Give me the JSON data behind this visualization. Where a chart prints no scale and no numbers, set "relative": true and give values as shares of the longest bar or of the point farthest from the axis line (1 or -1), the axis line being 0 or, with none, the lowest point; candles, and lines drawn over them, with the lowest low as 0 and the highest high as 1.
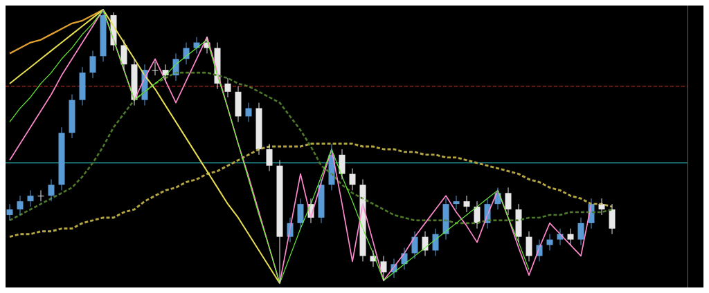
{
  "chart_data": [
    {
      "type": "candlestick",
      "relative": true,
      "categories": [
        null,
        null,
        null,
        null,
        null,
        null,
        null,
        null,
        null,
        null,
        null,
        null,
        null,
        null,
        null,
        null,
        null,
        null,
        null,
        null,
        null,
        null,
        null,
        null,
        null,
        null,
        null,
        null,
        null,
        null,
        null,
        null,
        null,
        null,
        null,
        null,
        null,
        null,
        null,
        null,
        null,
        null,
        null,
        null,
        null,
        null,
        null,
        null,
        null,
        null,
        null,
        null,
        null,
        null,
        null,
        null,
        null,
        null,
        null
      ],
      "ohlc": [
        [
          0.25,
          0.29,
          0.23,
          0.27
        ],
        [
          0.27,
          0.32,
          0.25,
          0.3
        ],
        [
          0.3,
          0.34,
          0.28,
          0.32
        ],
        [
          0.32,
          0.34,
          0.3,
          0.32
        ],
        [
          0.32,
          0.38,
          0.3,
          0.36
        ],
        [
          0.36,
          0.57,
          0.34,
          0.55
        ],
        [
          0.55,
          0.69,
          0.53,
          0.67
        ],
        [
          0.67,
          0.79,
          0.65,
          0.77
        ],
        [
          0.77,
          0.85,
          0.75,
          0.83
        ],
        [
          0.83,
          1,
          0.81,
          0.98
        ],
        [
          0.98,
          0.99,
          0.85,
          0.87
        ],
        [
          0.87,
          0.89,
          0.78,
          0.8
        ],
        [
          0.8,
          0.82,
          0.65,
          0.67
        ],
        [
          0.67,
          0.8,
          0.65,
          0.78
        ],
        [
          0.78,
          0.81,
          0.76,
          0.78
        ],
        [
          0.78,
          0.8,
          0.74,
          0.76
        ],
        [
          0.76,
          0.84,
          0.74,
          0.82
        ],
        [
          0.82,
          0.88,
          0.8,
          0.86
        ],
        [
          0.86,
          0.9,
          0.84,
          0.88
        ],
        [
          0.88,
          0.9,
          0.84,
          0.86
        ],
        [
          0.86,
          0.88,
          0.71,
          0.73
        ],
        [
          0.73,
          0.75,
          0.68,
          0.7
        ],
        [
          0.7,
          0.72,
          0.59,
          0.61
        ],
        [
          0.61,
          0.66,
          0.59,
          0.64
        ],
        [
          0.64,
          0.66,
          0.47,
          0.49
        ],
        [
          0.49,
          0.51,
          0.41,
          0.43
        ],
        [
          0.43,
          0.45,
          0,
          0.17
        ],
        [
          0.17,
          0.24,
          0.15,
          0.22
        ],
        [
          0.22,
          0.31,
          0.2,
          0.29
        ],
        [
          0.29,
          0.31,
          0.22,
          0.24
        ],
        [
          0.24,
          0.38,
          0.22,
          0.36
        ],
        [
          0.36,
          0.51,
          0.34,
          0.47
        ],
        [
          0.47,
          0.49,
          0.38,
          0.4
        ],
        [
          0.4,
          0.42,
          0.34,
          0.36
        ],
        [
          0.36,
          0.38,
          0.08,
          0.1
        ],
        [
          0.1,
          0.12,
          0.06,
          0.08
        ],
        [
          0.08,
          0.1,
          0.01,
          0.04
        ],
        [
          0.04,
          0.09,
          0.02,
          0.07
        ],
        [
          0.07,
          0.13,
          0.05,
          0.11
        ],
        [
          0.11,
          0.19,
          0.09,
          0.17
        ],
        [
          0.17,
          0.19,
          0.1,
          0.12
        ],
        [
          0.12,
          0.2,
          0.1,
          0.18
        ],
        [
          0.18,
          0.31,
          0.16,
          0.29
        ],
        [
          0.29,
          0.32,
          0.27,
          0.3
        ],
        [
          0.3,
          0.32,
          0.26,
          0.28
        ],
        [
          0.28,
          0.3,
          0.2,
          0.22
        ],
        [
          0.22,
          0.31,
          0.2,
          0.29
        ],
        [
          0.29,
          0.35,
          0.27,
          0.33
        ],
        [
          0.33,
          0.35,
          0.25,
          0.27
        ],
        [
          0.27,
          0.29,
          0.15,
          0.17
        ],
        [
          0.17,
          0.19,
          0.08,
          0.1
        ],
        [
          0.1,
          0.16,
          0.08,
          0.14
        ],
        [
          0.14,
          0.18,
          0.12,
          0.16
        ],
        [
          0.16,
          0.2,
          0.14,
          0.18
        ],
        [
          0.18,
          0.2,
          0.14,
          0.16
        ],
        [
          0.16,
          0.24,
          0.14,
          0.22
        ],
        [
          0.22,
          0.31,
          0.2,
          0.29
        ],
        [
          0.29,
          0.31,
          0.25,
          0.27
        ],
        [
          0.27,
          0.29,
          0.18,
          0.2
        ]
      ],
      "colors": [
        "#5b9bd5",
        "#5b9bd5",
        "#5b9bd5",
        "#e8e8e8",
        "#5b9bd5",
        "#5b9bd5",
        "#5b9bd5",
        "#5b9bd5",
        "#5b9bd5",
        "#5b9bd5",
        "#e8e8e8",
        "#e8e8e8",
        "#e8e8e8",
        "#5b9bd5",
        "#e8e8e8",
        "#e8e8e8",
        "#5b9bd5",
        "#5b9bd5",
        "#5b9bd5",
        "#e8e8e8",
        "#e8e8e8",
        "#e8e8e8",
        "#e8e8e8",
        "#5b9bd5",
        "#e8e8e8",
        "#e8e8e8",
        "#e8e8e8",
        "#5b9bd5",
        "#5b9bd5",
        "#e8e8e8",
        "#5b9bd5",
        "#5b9bd5",
        "#e8e8e8",
        "#e8e8e8",
        "#e8e8e8",
        "#e8e8e8",
        "#e8e8e8",
        "#5b9bd5",
        "#5b9bd5",
        "#5b9bd5",
        "#e8e8e8",
        "#5b9bd5",
        "#5b9bd5",
        "#5b9bd5",
        "#e8e8e8",
        "#e8e8e8",
        "#5b9bd5",
        "#5b9bd5",
        "#e8e8e8",
        "#e8e8e8",
        "#e8e8e8",
        "#5b9bd5",
        "#5b9bd5",
        "#5b9bd5",
        "#e8e8e8",
        "#5b9bd5",
        "#5b9bd5",
        "#e8e8e8",
        "#e8e8e8"
      ],
      "ref_lines": [
        {
          "axis": "y",
          "value": 0.44,
          "color": "#33cccc",
          "line_style": "solid"
        },
        {
          "axis": "y",
          "value": 0.72,
          "color": "#cc3333",
          "line_style": "dashed"
        }
      ]
    },
    {
      "type": "line",
      "relative": true,
      "categories": [
        null,
        null,
        null,
        null,
        null,
        null,
        null,
        null,
        null,
        null,
        null,
        null,
        null,
        null,
        null,
        null,
        null,
        null,
        null,
        null,
        null,
        null,
        null,
        null,
        null,
        null,
        null,
        null,
        null,
        null,
        null,
        null,
        null,
        null,
        null,
        null,
        null,
        null,
        null,
        null,
        null,
        null,
        null,
        null,
        null,
        null,
        null,
        null,
        null,
        null,
        null,
        null,
        null,
        null,
        null,
        null,
        null,
        null,
        null
      ],
      "series": [
        {
          "color": "#b5a642",
          "line_style": "dashed",
          "values": [
            0.17,
            0.18,
            0.18,
            0.19,
            0.19,
            0.2,
            0.2,
            0.22,
            0.23,
            0.24,
            0.24,
            0.26,
            0.27,
            0.3,
            0.32,
            0.34,
            0.35,
            0.37,
            0.38,
            0.4,
            0.41,
            0.43,
            0.45,
            0.47,
            0.49,
            0.5,
            0.5,
            0.5,
            0.5,
            0.51,
            0.51,
            0.51,
            0.51,
            0.51,
            0.5,
            0.5,
            0.49,
            0.49,
            0.48,
            0.48,
            0.47,
            0.47,
            0.46,
            0.46,
            0.45,
            0.44,
            0.43,
            0.42,
            0.41,
            0.4,
            0.38,
            0.37,
            0.35,
            0.34,
            0.32,
            0.31,
            0.29,
            0.29,
            0.28
          ]
        },
        {
          "color": "#4f7a2a",
          "line_style": "dashed",
          "values": [
            0.23,
            0.25,
            0.27,
            0.29,
            0.31,
            0.33,
            0.35,
            0.39,
            0.44,
            0.5,
            0.57,
            0.62,
            0.67,
            0.7,
            0.73,
            0.75,
            0.77,
            0.77,
            0.77,
            0.77,
            0.76,
            0.75,
            0.73,
            0.72,
            0.7,
            0.68,
            0.66,
            0.61,
            0.56,
            0.5,
            0.43,
            0.4,
            0.36,
            0.33,
            0.31,
            0.29,
            0.27,
            0.25,
            0.24,
            0.23,
            0.23,
            0.23,
            0.23,
            0.22,
            0.22,
            0.22,
            0.23,
            0.23,
            0.23,
            0.23,
            0.24,
            0.24,
            0.25,
            0.25,
            0.26,
            0.26,
            0.26,
            0.26,
            0.27
          ]
        },
        {
          "color": "#e0a030",
          "line_style": "solid",
          "values": [
            0.84,
            0.86,
            0.88,
            0.89,
            0.91,
            0.93,
            0.95,
            0.96,
            0.98,
            1,
            null,
            null,
            null,
            null,
            null,
            null,
            null,
            null,
            null,
            null,
            null,
            null,
            null,
            null,
            null,
            null,
            null,
            null,
            null,
            null,
            null,
            null,
            null,
            null,
            null,
            null,
            null,
            null,
            null,
            null,
            null,
            null,
            null,
            null,
            null,
            null,
            null,
            null,
            null,
            null,
            null,
            null,
            null,
            null,
            null,
            null,
            null,
            null,
            null
          ]
        },
        {
          "color": "#e8e050",
          "line_style": "solid",
          "values": [
            0.73,
            0.76,
            0.79,
            0.82,
            0.85,
            0.88,
            0.91,
            0.94,
            0.97,
            1,
            0.94,
            0.88,
            0.82,
            0.76,
            0.71,
            0.65,
            0.59,
            0.53,
            0.47,
            0.41,
            0.35,
            0.29,
            0.24,
            0.18,
            0.12,
            0.06,
            0,
            null,
            null,
            null,
            null,
            null,
            null,
            null,
            null,
            null,
            null,
            null,
            null,
            null,
            null,
            null,
            null,
            null,
            null,
            null,
            null,
            null,
            null,
            null,
            null,
            null,
            null,
            null,
            null,
            null,
            null,
            null,
            null
          ]
        },
        {
          "color": "#ff88cc",
          "line_style": "solid",
          "values": [
            0.45,
            0.51,
            0.57,
            0.63,
            0.69,
            0.76,
            0.82,
            0.88,
            0.94,
            1,
            0.89,
            0.78,
            0.67,
            0.75,
            0.82,
            0.74,
            0.66,
            0.74,
            0.82,
            0.9,
            0.77,
            0.64,
            0.51,
            0.39,
            0.26,
            0.13,
            0,
            0.2,
            0.4,
            0.24,
            0.37,
            0.49,
            0.29,
            0.08,
            0.29,
            0.15,
            0.01,
            0.06,
            0.11,
            0.17,
            0.22,
            0.27,
            0.32,
            0.26,
            0.21,
            0.15,
            0.25,
            0.34,
            0.24,
            0.13,
            0.03,
            0.13,
            0.22,
            0.18,
            0.14,
            0.1,
            0.29,
            null,
            null
          ]
        },
        {
          "color": "#66ee33",
          "line_style": "solid",
          "values": [
            0.59,
            0.64,
            0.68,
            0.73,
            0.77,
            0.82,
            0.86,
            0.91,
            0.95,
            1,
            0.89,
            0.78,
            0.67,
            0.7,
            0.73,
            0.76,
            0.8,
            0.83,
            0.86,
            0.89,
            0.76,
            0.64,
            0.51,
            0.38,
            0.25,
            0.13,
            0,
            0.1,
            0.2,
            0.29,
            0.39,
            0.49,
            0.39,
            0.3,
            0.2,
            0.11,
            0.01,
            0.04,
            0.07,
            0.1,
            0.13,
            0.16,
            0.19,
            0.22,
            0.25,
            0.28,
            0.31,
            0.34,
            0.24,
            0.15,
            0.05,
            null,
            null,
            null,
            null,
            null,
            null,
            null,
            null
          ]
        }
      ]
    }
  ]
}
